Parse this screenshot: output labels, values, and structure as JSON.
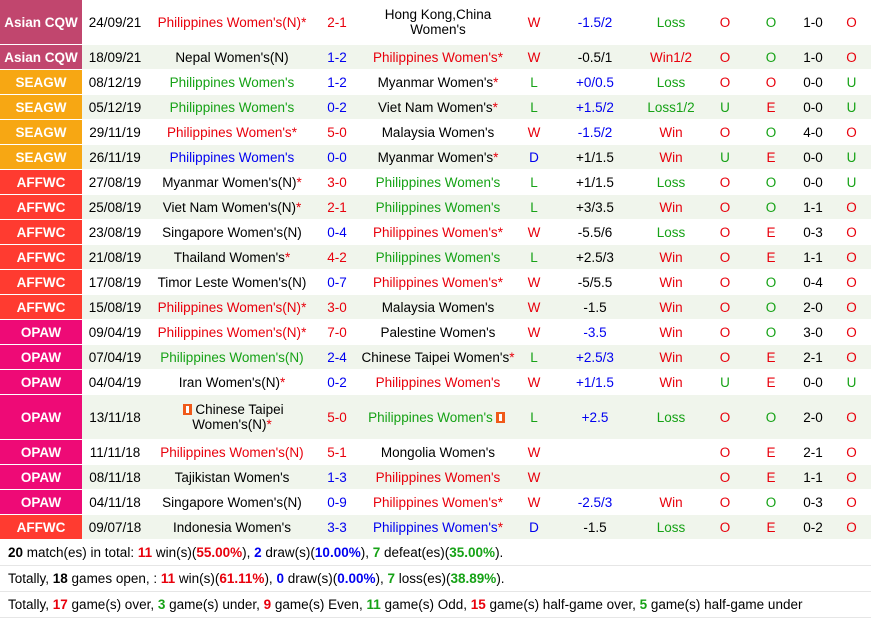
{
  "colors": {
    "asian_cqw": "#c1466e",
    "seagw": "#f7a713",
    "affwc": "#ff3b30",
    "opaw": "#ee0a76",
    "win": "#e8000c",
    "loss": "#16a216",
    "draw": "#0000f0",
    "row_alt": "#f0f5ec"
  },
  "rows": [
    {
      "league": "Asian CQW",
      "lc": "asian_cqw",
      "date": "24/09/21",
      "home": "Philippines Women's(N)",
      "home_star": "*",
      "hc": "red",
      "score": "2-1",
      "sc": "red",
      "away": "Hong Kong,China Women's",
      "away_star": "",
      "ac": "black",
      "res": "W",
      "rc": "red",
      "hcp": "-1.5/2",
      "hcpc": "blue",
      "ou": "Loss",
      "ouc": "green",
      "c1": "O",
      "c1c": "red",
      "c2": "O",
      "c2c": "green",
      "ht": "1-0",
      "htc": "black",
      "c3": "O",
      "c3c": "red",
      "h": "tall2"
    },
    {
      "league": "Asian CQW",
      "lc": "asian_cqw",
      "date": "18/09/21",
      "home": "Nepal Women's(N)",
      "home_star": "",
      "hc": "black",
      "score": "1-2",
      "sc": "blue",
      "away": "Philippines Women's",
      "away_star": "*",
      "ac": "red",
      "res": "W",
      "rc": "red",
      "hcp": "-0.5/1",
      "hcpc": "black",
      "ou": "Win1/2",
      "ouc": "red",
      "c1": "O",
      "c1c": "red",
      "c2": "O",
      "c2c": "green",
      "ht": "1-0",
      "htc": "black",
      "c3": "O",
      "c3c": "red",
      "h": ""
    },
    {
      "league": "SEAGW",
      "lc": "seagw",
      "date": "08/12/19",
      "home": "Philippines Women's",
      "home_star": "",
      "hc": "green",
      "score": "1-2",
      "sc": "blue",
      "away": "Myanmar Women's",
      "away_star": "*",
      "ac": "black",
      "res": "L",
      "rc": "green",
      "hcp": "+0/0.5",
      "hcpc": "blue",
      "ou": "Loss",
      "ouc": "green",
      "c1": "O",
      "c1c": "red",
      "c2": "O",
      "c2c": "red",
      "ht": "0-0",
      "htc": "black",
      "c3": "U",
      "c3c": "green",
      "h": ""
    },
    {
      "league": "SEAGW",
      "lc": "seagw",
      "date": "05/12/19",
      "home": "Philippines Women's",
      "home_star": "",
      "hc": "green",
      "score": "0-2",
      "sc": "blue",
      "away": "Viet Nam Women's",
      "away_star": "*",
      "ac": "black",
      "res": "L",
      "rc": "green",
      "hcp": "+1.5/2",
      "hcpc": "blue",
      "ou": "Loss1/2",
      "ouc": "green",
      "c1": "U",
      "c1c": "green",
      "c2": "E",
      "c2c": "red",
      "ht": "0-0",
      "htc": "black",
      "c3": "U",
      "c3c": "green",
      "h": ""
    },
    {
      "league": "SEAGW",
      "lc": "seagw",
      "date": "29/11/19",
      "home": "Philippines Women's",
      "home_star": "*",
      "hc": "red",
      "score": "5-0",
      "sc": "red",
      "away": "Malaysia Women's",
      "away_star": "",
      "ac": "black",
      "res": "W",
      "rc": "red",
      "hcp": "-1.5/2",
      "hcpc": "blue",
      "ou": "Win",
      "ouc": "red",
      "c1": "O",
      "c1c": "red",
      "c2": "O",
      "c2c": "green",
      "ht": "4-0",
      "htc": "black",
      "c3": "O",
      "c3c": "red",
      "h": ""
    },
    {
      "league": "SEAGW",
      "lc": "seagw",
      "date": "26/11/19",
      "home": "Philippines Women's",
      "home_star": "",
      "hc": "blue",
      "score": "0-0",
      "sc": "blue",
      "away": "Myanmar Women's",
      "away_star": "*",
      "ac": "black",
      "res": "D",
      "rc": "blue",
      "hcp": "+1/1.5",
      "hcpc": "black",
      "ou": "Win",
      "ouc": "red",
      "c1": "U",
      "c1c": "green",
      "c2": "E",
      "c2c": "red",
      "ht": "0-0",
      "htc": "black",
      "c3": "U",
      "c3c": "green",
      "h": ""
    },
    {
      "league": "AFFWC",
      "lc": "affwc",
      "date": "27/08/19",
      "home": "Myanmar Women's(N)",
      "home_star": "*",
      "hc": "black",
      "score": "3-0",
      "sc": "red",
      "away": "Philippines Women's",
      "away_star": "",
      "ac": "green",
      "res": "L",
      "rc": "green",
      "hcp": "+1/1.5",
      "hcpc": "black",
      "ou": "Loss",
      "ouc": "green",
      "c1": "O",
      "c1c": "red",
      "c2": "O",
      "c2c": "green",
      "ht": "0-0",
      "htc": "black",
      "c3": "U",
      "c3c": "green",
      "h": ""
    },
    {
      "league": "AFFWC",
      "lc": "affwc",
      "date": "25/08/19",
      "home": "Viet Nam Women's(N)",
      "home_star": "*",
      "hc": "black",
      "score": "2-1",
      "sc": "red",
      "away": "Philippines Women's",
      "away_star": "",
      "ac": "green",
      "res": "L",
      "rc": "green",
      "hcp": "+3/3.5",
      "hcpc": "black",
      "ou": "Win",
      "ouc": "red",
      "c1": "O",
      "c1c": "red",
      "c2": "O",
      "c2c": "green",
      "ht": "1-1",
      "htc": "black",
      "c3": "O",
      "c3c": "red",
      "h": ""
    },
    {
      "league": "AFFWC",
      "lc": "affwc",
      "date": "23/08/19",
      "home": "Singapore Women's(N)",
      "home_star": "",
      "hc": "black",
      "score": "0-4",
      "sc": "blue",
      "away": "Philippines Women's",
      "away_star": "*",
      "ac": "red",
      "res": "W",
      "rc": "red",
      "hcp": "-5.5/6",
      "hcpc": "black",
      "ou": "Loss",
      "ouc": "green",
      "c1": "O",
      "c1c": "red",
      "c2": "E",
      "c2c": "red",
      "ht": "0-3",
      "htc": "black",
      "c3": "O",
      "c3c": "red",
      "h": ""
    },
    {
      "league": "AFFWC",
      "lc": "affwc",
      "date": "21/08/19",
      "home": "Thailand Women's",
      "home_star": "*",
      "hc": "black",
      "score": "4-2",
      "sc": "red",
      "away": "Philippines Women's",
      "away_star": "",
      "ac": "green",
      "res": "L",
      "rc": "green",
      "hcp": "+2.5/3",
      "hcpc": "black",
      "ou": "Win",
      "ouc": "red",
      "c1": "O",
      "c1c": "red",
      "c2": "E",
      "c2c": "red",
      "ht": "1-1",
      "htc": "black",
      "c3": "O",
      "c3c": "red",
      "h": ""
    },
    {
      "league": "AFFWC",
      "lc": "affwc",
      "date": "17/08/19",
      "home": "Timor Leste Women's(N)",
      "home_star": "",
      "hc": "black",
      "score": "0-7",
      "sc": "blue",
      "away": "Philippines Women's",
      "away_star": "*",
      "ac": "red",
      "res": "W",
      "rc": "red",
      "hcp": "-5/5.5",
      "hcpc": "black",
      "ou": "Win",
      "ouc": "red",
      "c1": "O",
      "c1c": "red",
      "c2": "O",
      "c2c": "green",
      "ht": "0-4",
      "htc": "black",
      "c3": "O",
      "c3c": "red",
      "h": ""
    },
    {
      "league": "AFFWC",
      "lc": "affwc",
      "date": "15/08/19",
      "home": "Philippines Women's(N)",
      "home_star": "*",
      "hc": "red",
      "score": "3-0",
      "sc": "red",
      "away": "Malaysia Women's",
      "away_star": "",
      "ac": "black",
      "res": "W",
      "rc": "red",
      "hcp": "-1.5",
      "hcpc": "black",
      "ou": "Win",
      "ouc": "red",
      "c1": "O",
      "c1c": "red",
      "c2": "O",
      "c2c": "green",
      "ht": "2-0",
      "htc": "black",
      "c3": "O",
      "c3c": "red",
      "h": ""
    },
    {
      "league": "OPAW",
      "lc": "opaw",
      "date": "09/04/19",
      "home": "Philippines Women's(N)",
      "home_star": "*",
      "hc": "red",
      "score": "7-0",
      "sc": "red",
      "away": "Palestine Women's",
      "away_star": "",
      "ac": "black",
      "res": "W",
      "rc": "red",
      "hcp": "-3.5",
      "hcpc": "blue",
      "ou": "Win",
      "ouc": "red",
      "c1": "O",
      "c1c": "red",
      "c2": "O",
      "c2c": "green",
      "ht": "3-0",
      "htc": "black",
      "c3": "O",
      "c3c": "red",
      "h": ""
    },
    {
      "league": "OPAW",
      "lc": "opaw",
      "date": "07/04/19",
      "home": "Philippines Women's(N)",
      "home_star": "",
      "hc": "green",
      "score": "2-4",
      "sc": "blue",
      "away": "Chinese Taipei Women's",
      "away_star": "*",
      "ac": "black",
      "res": "L",
      "rc": "green",
      "hcp": "+2.5/3",
      "hcpc": "blue",
      "ou": "Win",
      "ouc": "red",
      "c1": "O",
      "c1c": "red",
      "c2": "E",
      "c2c": "red",
      "ht": "2-1",
      "htc": "black",
      "c3": "O",
      "c3c": "red",
      "h": ""
    },
    {
      "league": "OPAW",
      "lc": "opaw",
      "date": "04/04/19",
      "home": "Iran Women's(N)",
      "home_star": "*",
      "hc": "black",
      "score": "0-2",
      "sc": "blue",
      "away": "Philippines Women's",
      "away_star": "",
      "ac": "red",
      "res": "W",
      "rc": "red",
      "hcp": "+1/1.5",
      "hcpc": "blue",
      "ou": "Win",
      "ouc": "red",
      "c1": "U",
      "c1c": "green",
      "c2": "E",
      "c2c": "red",
      "ht": "0-0",
      "htc": "black",
      "c3": "U",
      "c3c": "green",
      "h": ""
    },
    {
      "league": "OPAW",
      "lc": "opaw",
      "date": "13/11/18",
      "home": "Chinese Taipei Women's(N)",
      "home_star": "*",
      "home_flag": true,
      "hc": "black",
      "score": "5-0",
      "sc": "red",
      "away": "Philippines Women's",
      "away_star": "",
      "away_flag": true,
      "ac": "green",
      "res": "L",
      "rc": "green",
      "hcp": "+2.5",
      "hcpc": "blue",
      "ou": "Loss",
      "ouc": "green",
      "c1": "O",
      "c1c": "red",
      "c2": "O",
      "c2c": "green",
      "ht": "2-0",
      "htc": "black",
      "c3": "O",
      "c3c": "red",
      "h": "tall2"
    },
    {
      "league": "OPAW",
      "lc": "opaw",
      "date": "11/11/18",
      "home": "Philippines Women's(N)",
      "home_star": "",
      "hc": "red",
      "score": "5-1",
      "sc": "red",
      "away": "Mongolia Women's",
      "away_star": "",
      "ac": "black",
      "res": "W",
      "rc": "red",
      "hcp": "",
      "hcpc": "black",
      "ou": "",
      "ouc": "black",
      "c1": "O",
      "c1c": "red",
      "c2": "E",
      "c2c": "red",
      "ht": "2-1",
      "htc": "black",
      "c3": "O",
      "c3c": "red",
      "h": ""
    },
    {
      "league": "OPAW",
      "lc": "opaw",
      "date": "08/11/18",
      "home": "Tajikistan Women's",
      "home_star": "",
      "hc": "black",
      "score": "1-3",
      "sc": "blue",
      "away": "Philippines Women's",
      "away_star": "",
      "ac": "red",
      "res": "W",
      "rc": "red",
      "hcp": "",
      "hcpc": "black",
      "ou": "",
      "ouc": "black",
      "c1": "O",
      "c1c": "red",
      "c2": "E",
      "c2c": "red",
      "ht": "1-1",
      "htc": "black",
      "c3": "O",
      "c3c": "red",
      "h": ""
    },
    {
      "league": "OPAW",
      "lc": "opaw",
      "date": "04/11/18",
      "home": "Singapore Women's(N)",
      "home_star": "",
      "hc": "black",
      "score": "0-9",
      "sc": "blue",
      "away": "Philippines Women's",
      "away_star": "*",
      "ac": "red",
      "res": "W",
      "rc": "red",
      "hcp": "-2.5/3",
      "hcpc": "blue",
      "ou": "Win",
      "ouc": "red",
      "c1": "O",
      "c1c": "red",
      "c2": "O",
      "c2c": "green",
      "ht": "0-3",
      "htc": "black",
      "c3": "O",
      "c3c": "red",
      "h": ""
    },
    {
      "league": "AFFWC",
      "lc": "affwc",
      "date": "09/07/18",
      "home": "Indonesia Women's",
      "home_star": "",
      "hc": "black",
      "score": "3-3",
      "sc": "blue",
      "away": "Philippines Women's",
      "away_star": "*",
      "ac": "blue",
      "res": "D",
      "rc": "blue",
      "hcp": "-1.5",
      "hcpc": "black",
      "ou": "Loss",
      "ouc": "green",
      "c1": "O",
      "c1c": "red",
      "c2": "E",
      "c2c": "red",
      "ht": "0-2",
      "htc": "black",
      "c3": "O",
      "c3c": "red",
      "h": ""
    }
  ],
  "summary": {
    "line1": {
      "total": "20",
      "t1": " match(es) in total: ",
      "wins": "11",
      "t2": " win(s)(",
      "win_pct": "55.00%",
      "t3": "), ",
      "draws": "2",
      "t4": " draw(s)(",
      "draw_pct": "10.00%",
      "t5": "), ",
      "defeats": "7",
      "t6": " defeat(es)(",
      "defeat_pct": "35.00%",
      "t7": ")."
    },
    "line2": {
      "t0": "Totally, ",
      "open": "18",
      "t1": " games open, : ",
      "wins": "11",
      "t2": " win(s)(",
      "win_pct": "61.11%",
      "t3": "), ",
      "draws": "0",
      "t4": " draw(s)(",
      "draw_pct": "0.00%",
      "t5": "), ",
      "losses": "7",
      "t6": " loss(es)(",
      "loss_pct": "38.89%",
      "t7": ")."
    },
    "line3": {
      "t0": "Totally, ",
      "over": "17",
      "t1": " game(s) over, ",
      "under": "3",
      "t2": " game(s) under, ",
      "even": "9",
      "t3": " game(s) Even, ",
      "odd": "11",
      "t4": " game(s) Odd, ",
      "hg_over": "15",
      "t5": " game(s) half-game over, ",
      "hg_under": "5",
      "t6": " game(s) half-game under"
    }
  }
}
